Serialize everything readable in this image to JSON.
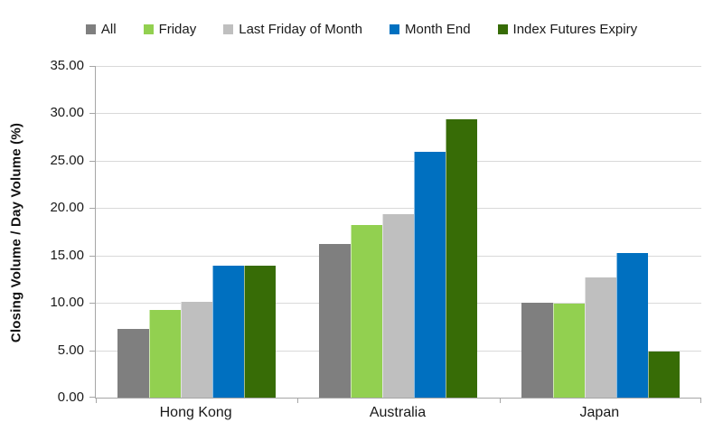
{
  "chart_data": {
    "type": "bar",
    "title": "",
    "xlabel": "",
    "ylabel": "Closing Volume / Day Volume (%)",
    "ylim": [
      0,
      35
    ],
    "ytick_step": 5,
    "ytick_labels": [
      "0.00",
      "5.00",
      "10.00",
      "15.00",
      "20.00",
      "25.00",
      "30.00",
      "35.00"
    ],
    "grid": true,
    "legend_position": "top",
    "categories": [
      "Hong Kong",
      "Australia",
      "Japan"
    ],
    "series": [
      {
        "name": "All",
        "color": "#7F7F7F",
        "values": [
          7.3,
          16.2,
          10.0
        ]
      },
      {
        "name": "Friday",
        "color": "#92D050",
        "values": [
          9.3,
          18.2,
          9.9
        ]
      },
      {
        "name": "Last Friday of Month",
        "color": "#BFBFBF",
        "values": [
          10.1,
          19.4,
          12.7
        ]
      },
      {
        "name": "Month End",
        "color": "#0070C0",
        "values": [
          13.9,
          25.9,
          15.3
        ]
      },
      {
        "name": "Index Futures Expiry",
        "color": "#376C06",
        "values": [
          13.9,
          29.4,
          4.9
        ]
      }
    ],
    "colors": {
      "gridline": "#D9D9D9",
      "axis": "#A6A6A6",
      "text": "#1A1A1A",
      "background": "#FFFFFF"
    }
  }
}
